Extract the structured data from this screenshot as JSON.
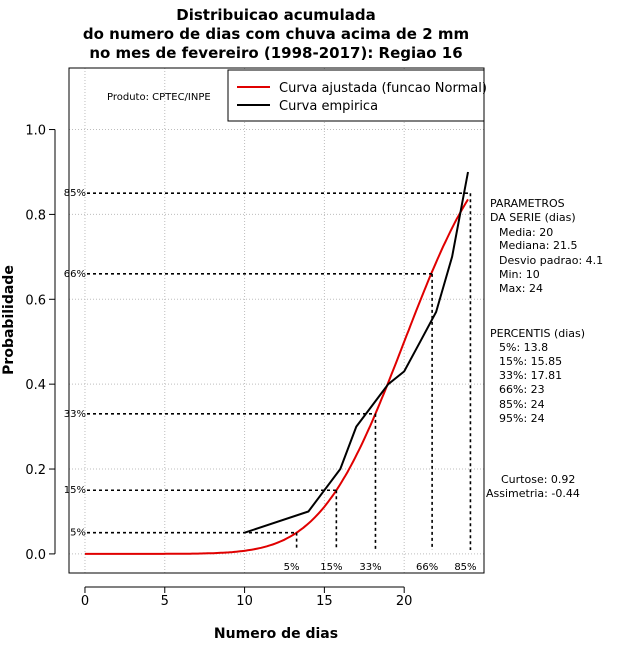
{
  "chart_data": {
    "type": "line",
    "title_lines": [
      "Distribuicao acumulada",
      "do numero de dias com chuva acima de 2 mm",
      "no mes de fevereiro (1998-2017): Regiao 16"
    ],
    "xlabel": "Numero de dias",
    "ylabel": "Probabilidade",
    "xlim": [
      -1,
      25
    ],
    "ylim": [
      -0.045,
      1.145
    ],
    "x_ticks": [
      0,
      5,
      10,
      15,
      20
    ],
    "y_ticks": [
      0.0,
      0.2,
      0.4,
      0.6,
      0.8,
      1.0
    ],
    "y_tick_labels": [
      "0.0",
      "0.2",
      "0.4",
      "0.6",
      "0.8",
      "1.0"
    ],
    "grid": true,
    "legend": {
      "placement": "top-right",
      "entries": [
        {
          "label": "Curva ajustada (funcao Normal)",
          "color": "#e00000"
        },
        {
          "label": "Curva empirica",
          "color": "#000000"
        }
      ]
    },
    "product_label": "Produto: CPTEC/INPE",
    "series": [
      {
        "name": "Curva ajustada (funcao Normal)",
        "color": "#e00000",
        "kind": "normal_cdf",
        "mean": 20,
        "sd": 4.1,
        "x_range": [
          0,
          24
        ]
      },
      {
        "name": "Curva empirica",
        "color": "#000000",
        "x": [
          10,
          14,
          15,
          16,
          17,
          18,
          19,
          20,
          21,
          22,
          23,
          24
        ],
        "y": [
          0.05,
          0.1,
          0.15,
          0.2,
          0.3,
          0.35,
          0.4,
          0.43,
          0.5,
          0.57,
          0.7,
          0.9
        ]
      }
    ],
    "percentile_markers": [
      {
        "label": "5%",
        "prob": 0.05,
        "value": 13.26
      },
      {
        "label": "15%",
        "prob": 0.15,
        "value": 15.75
      },
      {
        "label": "33%",
        "prob": 0.33,
        "value": 18.2
      },
      {
        "label": "66%",
        "prob": 0.66,
        "value": 21.75
      },
      {
        "label": "85%",
        "prob": 0.85,
        "value": 24.15
      }
    ],
    "parametros": {
      "header_lines": [
        "PARAMETROS",
        "DA SERIE (dias)"
      ],
      "items": [
        "Media: 20",
        "Mediana: 21.5",
        "Desvio padrao: 4.1",
        "Min: 10",
        "Max: 24"
      ]
    },
    "percentis": {
      "header": "PERCENTIS (dias)",
      "items": [
        "5%: 13.8",
        "15%: 15.85",
        "33%: 17.81",
        "66%: 23",
        "85%: 24",
        "95%: 24"
      ]
    },
    "shape_stats": [
      "Curtose: 0.92",
      "Assimetria: -0.44"
    ]
  }
}
